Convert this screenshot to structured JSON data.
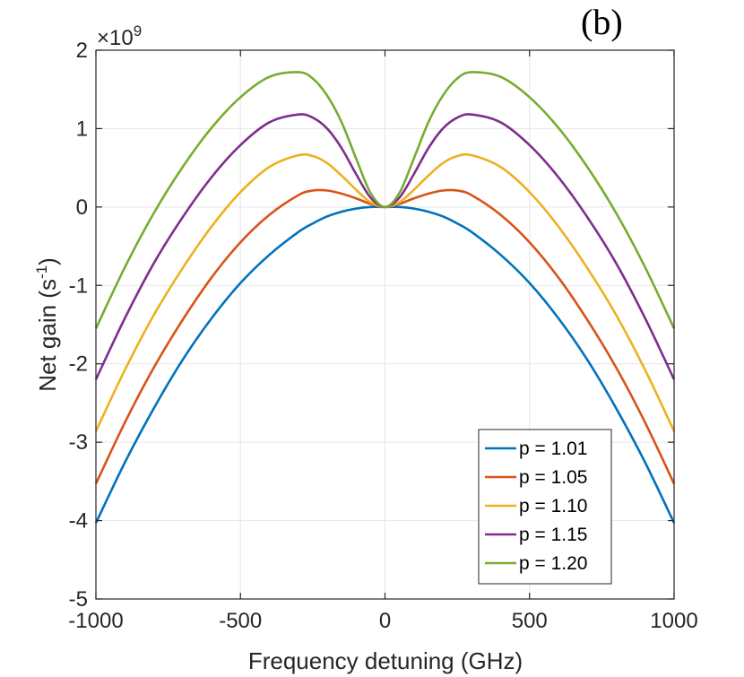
{
  "chart_data": {
    "type": "line",
    "panel_label": "(b)",
    "xlabel": "Frequency detuning (GHz)",
    "ylabel_main": "Net gain (s",
    "ylabel_sup": "-1",
    "ylabel_close": ")",
    "y_exponent_base": "×10",
    "y_exponent_power": "9",
    "xlim": [
      -1000,
      1000
    ],
    "ylim": [
      -5,
      2
    ],
    "x_ticks": [
      -1000,
      -500,
      0,
      500,
      1000
    ],
    "x_tick_labels": [
      "-1000",
      "-500",
      "0",
      "500",
      "1000"
    ],
    "y_ticks": [
      -5,
      -4,
      -3,
      -2,
      -1,
      0,
      1,
      2
    ],
    "y_tick_labels": [
      "-5",
      "-4",
      "-3",
      "-2",
      "-1",
      "0",
      "1",
      "2"
    ],
    "grid": true,
    "legend_position": "bottom-right",
    "x": [
      -1000,
      -900,
      -800,
      -700,
      -600,
      -500,
      -400,
      -300,
      -250,
      -200,
      -150,
      -100,
      -50,
      0,
      50,
      100,
      150,
      200,
      250,
      300,
      400,
      500,
      600,
      700,
      800,
      900,
      1000
    ],
    "series": [
      {
        "name": "p = 1.01",
        "color": "#0072BD",
        "values": [
          -4.03,
          -3.26,
          -2.57,
          -1.95,
          -1.42,
          -0.97,
          -0.61,
          -0.32,
          -0.21,
          -0.12,
          -0.06,
          -0.02,
          0.0,
          0.0,
          0.0,
          -0.02,
          -0.06,
          -0.12,
          -0.21,
          -0.32,
          -0.61,
          -0.97,
          -1.42,
          -1.95,
          -2.57,
          -3.26,
          -4.03
        ]
      },
      {
        "name": "p = 1.05",
        "color": "#D95319",
        "values": [
          -3.53,
          -2.75,
          -2.05,
          -1.44,
          -0.9,
          -0.45,
          -0.1,
          0.15,
          0.21,
          0.21,
          0.17,
          0.11,
          0.04,
          0.0,
          0.04,
          0.11,
          0.17,
          0.21,
          0.21,
          0.15,
          -0.1,
          -0.45,
          -0.9,
          -1.44,
          -2.05,
          -2.75,
          -3.53
        ]
      },
      {
        "name": "p = 1.10",
        "color": "#EDB120",
        "values": [
          -2.86,
          -2.08,
          -1.38,
          -0.78,
          -0.25,
          0.19,
          0.51,
          0.66,
          0.65,
          0.56,
          0.4,
          0.22,
          0.06,
          0.0,
          0.06,
          0.22,
          0.4,
          0.56,
          0.65,
          0.66,
          0.51,
          0.19,
          -0.25,
          -0.78,
          -1.38,
          -2.08,
          -2.86
        ]
      },
      {
        "name": "p = 1.15",
        "color": "#7E2F8E",
        "values": [
          -2.2,
          -1.42,
          -0.72,
          -0.13,
          0.38,
          0.79,
          1.08,
          1.18,
          1.14,
          1.0,
          0.75,
          0.42,
          0.12,
          0.0,
          0.12,
          0.42,
          0.75,
          1.0,
          1.14,
          1.18,
          1.08,
          0.79,
          0.38,
          -0.13,
          -0.72,
          -1.42,
          -2.2
        ]
      },
      {
        "name": "p = 1.20",
        "color": "#77AC30",
        "values": [
          -1.55,
          -0.77,
          -0.08,
          0.51,
          1.01,
          1.4,
          1.66,
          1.72,
          1.64,
          1.42,
          1.08,
          0.62,
          0.18,
          0.0,
          0.18,
          0.62,
          1.08,
          1.42,
          1.64,
          1.72,
          1.66,
          1.4,
          1.01,
          0.51,
          -0.08,
          -0.77,
          -1.55
        ]
      }
    ]
  }
}
